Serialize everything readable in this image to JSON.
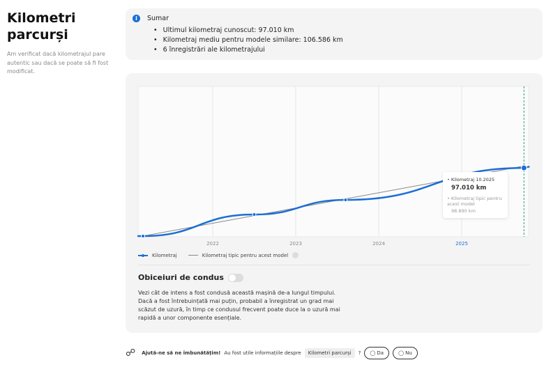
{
  "sidebar": {
    "title": "Kilometri parcurși",
    "description": "Am verificat dacă kilometrajul pare autentic sau dacă se poate să fi fost modificat."
  },
  "summary": {
    "title": "Sumar",
    "items": [
      "Ultimul kilometraj cunoscut: 97.010 km",
      "Kilometraj mediu pentru modele similare: 106.586 km",
      "6 înregistrări ale kilometrajului"
    ]
  },
  "chart_data": {
    "type": "line",
    "x_ticks": [
      "2022",
      "2023",
      "2024",
      "2025"
    ],
    "highlighted_tick": "2025",
    "series": [
      {
        "name": "Kilometraj",
        "x": [
          2021.16,
          2022.5,
          2023.6,
          2025.75
        ],
        "values": [
          30000,
          51200,
          65600,
          97010
        ],
        "color": "#1a6fd6"
      },
      {
        "name": "Kilometraj tipic pentru acest model",
        "x": [
          2021.16,
          2025.75
        ],
        "values": [
          30000,
          98890
        ],
        "color": "#888888"
      }
    ],
    "tooltip": {
      "label": "Kilometraj 10.2025",
      "value": "97.010 km",
      "typical_label": "Kilometraj tipic pentru acest model",
      "typical_value": "98.890 km"
    }
  },
  "legend": {
    "mileage": "Kilometraj",
    "typical": "Kilometraj tipic pentru acest model"
  },
  "habits": {
    "title": "Obiceiuri de condus",
    "toggle_on": false,
    "text": "Vezi cât de intens a fost condusă această mașină de-a lungul timpului. Dacă a fost întrebuințată mai puțin, probabil a înregistrat un grad mai scăzut de uzură, în timp ce condusul frecvent poate duce la o uzură mai rapidă a unor componente esențiale."
  },
  "feedback": {
    "prompt": "Ajută-ne să ne îmbunătățim!",
    "question": "Au fost utile informațiile despre",
    "topic": "Kilometri parcurși",
    "qmark": "?",
    "yes": "Da",
    "no": "Nu"
  }
}
